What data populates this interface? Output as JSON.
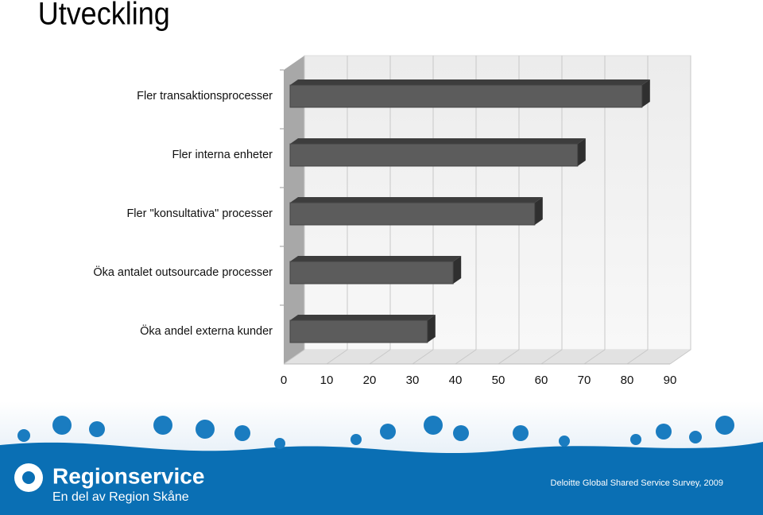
{
  "title": "Utveckling",
  "chart_data": {
    "type": "bar3d-horizontal",
    "categories": [
      "Fler transaktionsprocesser",
      "Fler interna enheter",
      "Fler \"konsultativa\" processer",
      "Öka antalet outsourcade processer",
      "Öka andel externa kunder"
    ],
    "values": [
      82,
      67,
      57,
      38,
      32
    ],
    "color": "#5c5c5c",
    "xlim": [
      0,
      90
    ],
    "xticks": [
      0,
      10,
      20,
      30,
      40,
      50,
      60,
      70,
      80,
      90
    ],
    "grid": true
  },
  "footer": {
    "brand": "Regionservice",
    "tagline": "En del av Region Skåne",
    "source": "Deloitte Global Shared Service Survey, 2009"
  }
}
